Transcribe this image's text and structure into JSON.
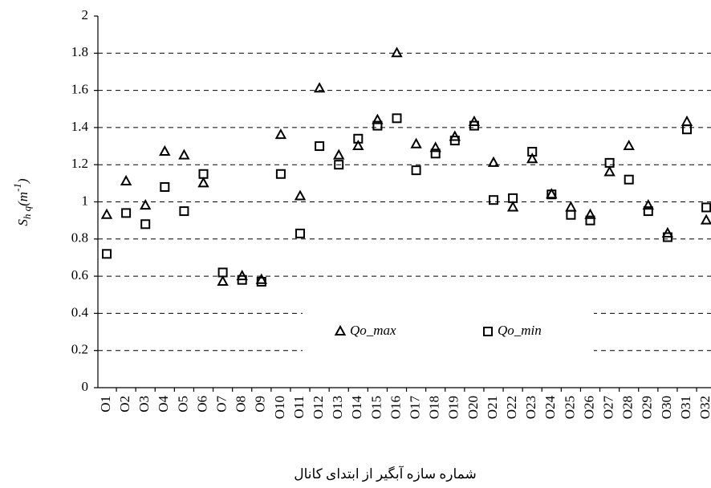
{
  "chart_data": {
    "type": "scatter",
    "ylabel": {
      "main": "S",
      "subscript": "h q",
      "open": "(m",
      "superscript": "-1",
      "close": ")"
    },
    "xlabel": "شماره سازه آبگیر از ابتدای کانال",
    "categories": [
      "O1",
      "O2",
      "O3",
      "O4",
      "O5",
      "O6",
      "O7",
      "O8",
      "O9",
      "O10",
      "O11",
      "O12",
      "O13",
      "O14",
      "O15",
      "O16",
      "O17",
      "O18",
      "O19",
      "O20",
      "O21",
      "O22",
      "O23",
      "O24",
      "O25",
      "O26",
      "O27",
      "O28",
      "O29",
      "O30",
      "O31",
      "O32"
    ],
    "series": [
      {
        "name": "Qo_max",
        "marker": "triangle",
        "color": "#000000",
        "values": [
          0.93,
          1.11,
          0.98,
          1.27,
          1.25,
          1.1,
          0.57,
          0.6,
          0.58,
          1.36,
          1.03,
          1.61,
          1.25,
          1.3,
          1.44,
          1.8,
          1.31,
          1.29,
          1.35,
          1.43,
          1.21,
          0.97,
          1.23,
          1.04,
          0.97,
          0.93,
          1.16,
          1.3,
          0.98,
          0.83,
          1.43,
          0.9
        ]
      },
      {
        "name": "Qo_min",
        "marker": "square",
        "color": "#000000",
        "values": [
          0.72,
          0.94,
          0.88,
          1.08,
          0.95,
          1.15,
          0.62,
          0.58,
          0.57,
          1.15,
          0.83,
          1.3,
          1.2,
          1.34,
          1.41,
          1.45,
          1.17,
          1.26,
          1.33,
          1.41,
          1.01,
          1.02,
          1.27,
          1.04,
          0.93,
          0.9,
          1.21,
          1.12,
          0.95,
          0.81,
          1.39,
          0.97
        ]
      }
    ],
    "ylim": [
      0,
      2
    ],
    "yticks": [
      0,
      0.2,
      0.4,
      0.6,
      0.8,
      1,
      1.2,
      1.4,
      1.6,
      1.8,
      2
    ],
    "grid": true,
    "legend": "bottom"
  }
}
